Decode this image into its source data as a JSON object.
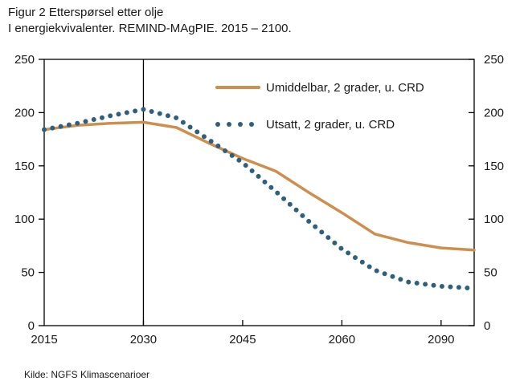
{
  "chart_data": {
    "type": "line",
    "title": "Figur 2 Etterspørsel etter olje",
    "subtitle": "I energiekvivalenter. REMIND-MAgPIE. 2015 – 2100.",
    "source": "Kilde: NGFS Klimascenarioer",
    "categories": [
      2015,
      2020,
      2025,
      2030,
      2035,
      2040,
      2045,
      2050,
      2055,
      2060,
      2070,
      2080,
      2090,
      2100
    ],
    "x_tick_labels": [
      2015,
      2030,
      2045,
      2060,
      2090
    ],
    "y_ticks": [
      0,
      50,
      100,
      150,
      200,
      250
    ],
    "ylim": [
      0,
      250
    ],
    "y_axis_both_sides": true,
    "grid": false,
    "legend_position": "top-right-inside",
    "reference_line_x": 2030,
    "axis_color": "#000000",
    "series": [
      {
        "name": "Umiddelbar, 2 grader, u. CRD",
        "style": "solid",
        "color": "#CE8E4D",
        "values": [
          184,
          188,
          190,
          191,
          186,
          171,
          157,
          145,
          125,
          106,
          86,
          78,
          73,
          71
        ]
      },
      {
        "name": "Utsatt, 2 grader, u. CRD",
        "style": "dotted",
        "color": "#2E5F7D",
        "values": [
          184,
          190,
          197,
          203,
          195,
          174,
          153,
          126,
          98,
          72,
          52,
          41,
          37,
          35
        ]
      }
    ]
  }
}
